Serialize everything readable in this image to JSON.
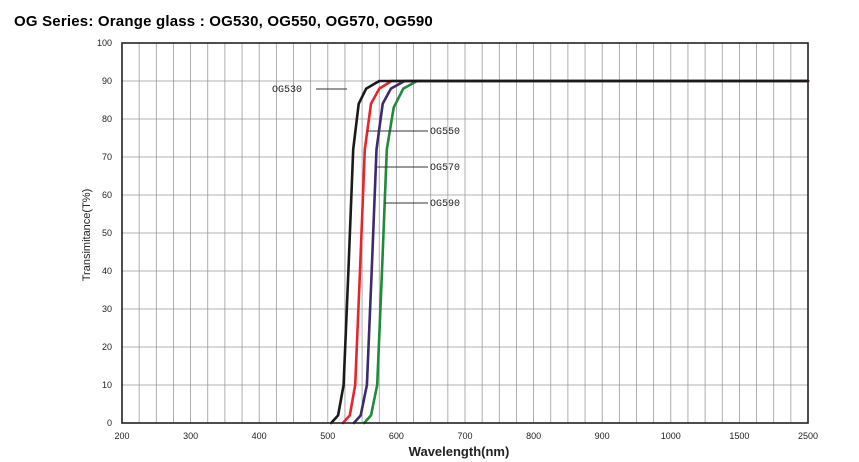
{
  "chart_data": {
    "type": "line",
    "title": "OG Series: Orange glass : OG530, OG550, OG570, OG590",
    "xlabel": "Wavelength(nm)",
    "ylabel": "Transimitance(T%)",
    "x_ticks": [
      "200",
      "300",
      "400",
      "500",
      "600",
      "700",
      "800",
      "900",
      "1000",
      "1500",
      "2500"
    ],
    "y_ticks": [
      0,
      10,
      20,
      30,
      40,
      50,
      60,
      70,
      80,
      90,
      100
    ],
    "ylim": [
      0,
      100
    ],
    "grid": true,
    "series": [
      {
        "name": "OG530",
        "color": "#1a1a1a",
        "points": [
          [
            505,
            0
          ],
          [
            515,
            2
          ],
          [
            523,
            10
          ],
          [
            530,
            40
          ],
          [
            537,
            72
          ],
          [
            545,
            84
          ],
          [
            556,
            88
          ],
          [
            575,
            90
          ],
          [
            2500,
            90
          ]
        ]
      },
      {
        "name": "OG550",
        "color": "#e8242a",
        "points": [
          [
            522,
            0
          ],
          [
            532,
            2
          ],
          [
            540,
            10
          ],
          [
            547,
            40
          ],
          [
            554,
            72
          ],
          [
            563,
            84
          ],
          [
            575,
            88
          ],
          [
            593,
            90
          ],
          [
            2500,
            90
          ]
        ]
      },
      {
        "name": "OG570",
        "color": "#3b2a6e",
        "points": [
          [
            538,
            0
          ],
          [
            548,
            2
          ],
          [
            557,
            10
          ],
          [
            564,
            40
          ],
          [
            571,
            72
          ],
          [
            580,
            84
          ],
          [
            592,
            88
          ],
          [
            612,
            90
          ],
          [
            2500,
            90
          ]
        ]
      },
      {
        "name": "OG590",
        "color": "#1f8a3a",
        "points": [
          [
            553,
            0
          ],
          [
            563,
            2
          ],
          [
            572,
            10
          ],
          [
            579,
            40
          ],
          [
            586,
            72
          ],
          [
            596,
            83
          ],
          [
            610,
            88
          ],
          [
            630,
            90
          ],
          [
            2500,
            90
          ]
        ]
      }
    ],
    "annotations": [
      {
        "text": "OG530",
        "series": "OG530"
      },
      {
        "text": "OG550",
        "series": "OG550"
      },
      {
        "text": "OG570",
        "series": "OG570"
      },
      {
        "text": "OG590",
        "series": "OG590"
      }
    ]
  }
}
